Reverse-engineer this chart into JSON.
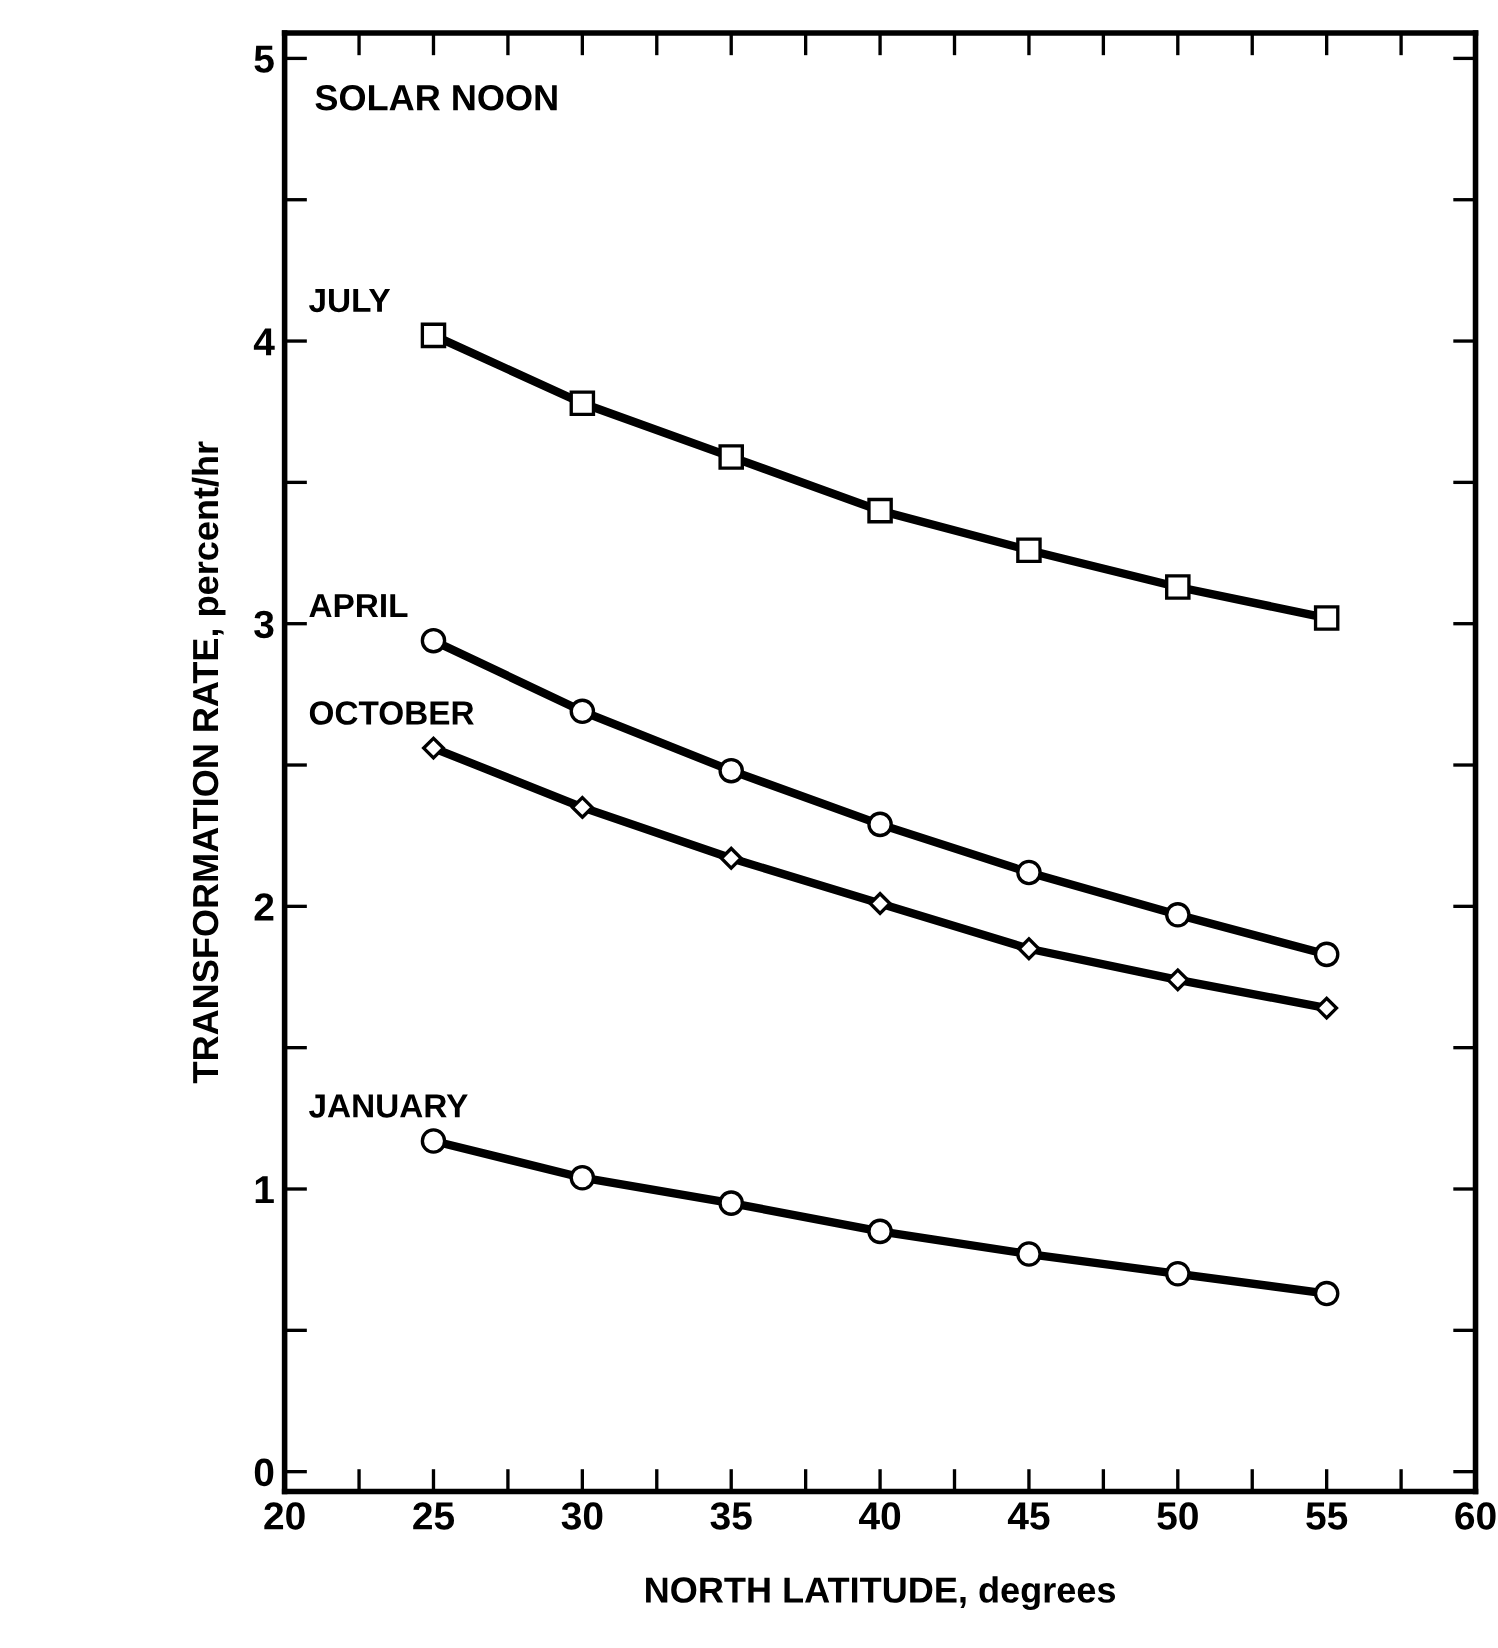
{
  "chart_data": {
    "type": "line",
    "xlabel": "NORTH LATITUDE, degrees",
    "ylabel": "TRANSFORMATION RATE, percent/hr",
    "annotations": [
      "SOLAR NOON"
    ],
    "x": [
      25,
      30,
      35,
      40,
      45,
      50,
      55
    ],
    "series": [
      {
        "name": "JULY",
        "color": "#000000",
        "marker": "square",
        "values": [
          4.02,
          3.78,
          3.59,
          3.4,
          3.26,
          3.13,
          3.02
        ]
      },
      {
        "name": "APRIL",
        "color": "#000000",
        "marker": "circle",
        "values": [
          2.94,
          2.69,
          2.48,
          2.29,
          2.12,
          1.97,
          1.83
        ]
      },
      {
        "name": "OCTOBER",
        "color": "#000000",
        "marker": "diamond",
        "values": [
          2.56,
          2.35,
          2.17,
          2.01,
          1.85,
          1.74,
          1.64
        ]
      },
      {
        "name": "JANUARY",
        "color": "#000000",
        "marker": "circle",
        "values": [
          1.17,
          1.04,
          0.95,
          0.85,
          0.77,
          0.7,
          0.63
        ]
      }
    ],
    "xlim": [
      20,
      60
    ],
    "ylim": [
      -0.07,
      5.09
    ],
    "xticks": [
      20,
      {
        "value": 22.5,
        "label": null
      },
      25,
      {
        "value": 27.5,
        "label": null
      },
      30,
      {
        "value": 32.5,
        "label": null
      },
      35,
      {
        "value": 37.5,
        "label": null
      },
      40,
      {
        "value": 42.5,
        "label": null
      },
      45,
      {
        "value": 47.5,
        "label": null
      },
      50,
      {
        "value": 52.5,
        "label": null
      },
      55,
      {
        "value": 57.5,
        "label": null
      },
      60
    ],
    "yticks": [
      0,
      {
        "value": 0.5,
        "label": null
      },
      1,
      {
        "value": 1.5,
        "label": null
      },
      2,
      {
        "value": 2.5,
        "label": null
      },
      3,
      {
        "value": 3.5,
        "label": null
      },
      4,
      {
        "value": 4.5,
        "label": null
      },
      5
    ],
    "line_style": "solid",
    "grid": false,
    "legend": false
  }
}
